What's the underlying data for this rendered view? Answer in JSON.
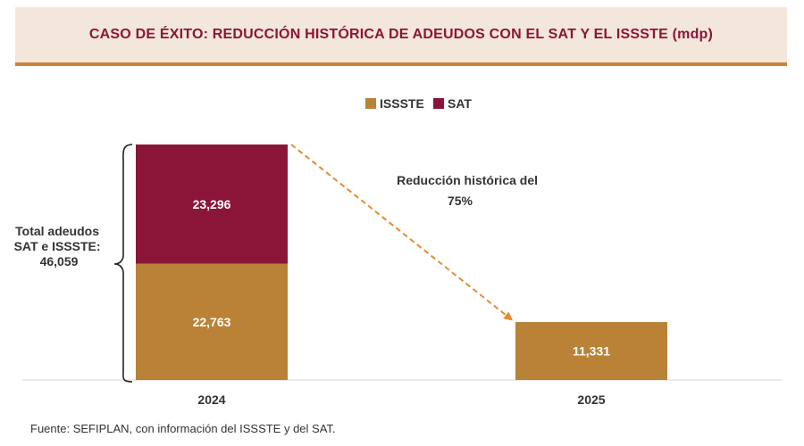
{
  "header": {
    "title": "CASO DE ÉXITO: REDUCCIÓN HISTÓRICA DE ADEUDOS CON EL SAT Y EL ISSSTE (mdp)"
  },
  "colors": {
    "issste": "#b98236",
    "sat": "#8b1538",
    "accent": "#e9892f",
    "header_bg": "#f3e6da",
    "header_rule": "#c8853a"
  },
  "chart_data": {
    "type": "bar",
    "stacked": true,
    "categories": [
      "2024",
      "2025"
    ],
    "series": [
      {
        "name": "ISSSTE",
        "values": [
          22763,
          11331
        ],
        "labels": [
          "22,763",
          "11,331"
        ]
      },
      {
        "name": "SAT",
        "values": [
          23296,
          null
        ],
        "labels": [
          "23,296",
          ""
        ]
      }
    ],
    "legend_position": "top-center",
    "ylim": [
      0,
      46059
    ],
    "grid": false,
    "annotations": {
      "total_lines": [
        "Total adeudos",
        "SAT e ISSSTE:",
        "46,059"
      ],
      "reduction_lines": [
        "Reducción histórica del",
        "75%"
      ]
    }
  },
  "source": "Fuente: SEFIPLAN, con información del ISSSTE y del SAT."
}
